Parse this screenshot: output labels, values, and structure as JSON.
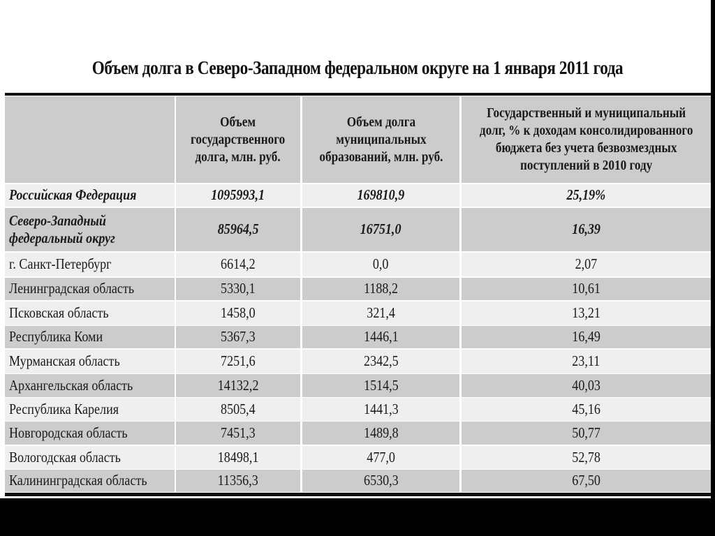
{
  "title": "Объем долга в Северо-Западном федеральном округе на 1 января 2011 года",
  "table": {
    "headers": [
      "",
      "Объем\nгосударственного\nдолга, млн. руб.",
      "Объем долга\nмуниципальных\nобразований, млн. руб.",
      "Государственный и муниципальный\nдолг, % к доходам консолидированного\nбюджета без учета безвозмездных\nпоступлений в 2010 году"
    ],
    "rows": [
      {
        "region": "Российская Федерация",
        "state_debt": "1095993,1",
        "municipal_debt": "169810,9",
        "debt_pct": "25,19%",
        "emphasis": true
      },
      {
        "region": "Северо-Западный\nфедеральный округ",
        "state_debt": "85964,5",
        "municipal_debt": "16751,0",
        "debt_pct": "16,39",
        "emphasis": true
      },
      {
        "region": "г. Санкт-Петербург",
        "state_debt": "6614,2",
        "municipal_debt": "0,0",
        "debt_pct": "2,07"
      },
      {
        "region": "Ленинградская область",
        "state_debt": "5330,1",
        "municipal_debt": "1188,2",
        "debt_pct": "10,61"
      },
      {
        "region": "Псковская область",
        "state_debt": "1458,0",
        "municipal_debt": "321,4",
        "debt_pct": "13,21"
      },
      {
        "region": "Республика Коми",
        "state_debt": "5367,3",
        "municipal_debt": "1446,1",
        "debt_pct": "16,49"
      },
      {
        "region": "Мурманская область",
        "state_debt": "7251,6",
        "municipal_debt": "2342,5",
        "debt_pct": "23,11"
      },
      {
        "region": "Архангельская область",
        "state_debt": "14132,2",
        "municipal_debt": "1514,5",
        "debt_pct": "40,03"
      },
      {
        "region": "Республика Карелия",
        "state_debt": "8505,4",
        "municipal_debt": "1441,3",
        "debt_pct": "45,16"
      },
      {
        "region": "Новгородская область",
        "state_debt": "7451,3",
        "municipal_debt": "1489,8",
        "debt_pct": "50,77"
      },
      {
        "region": "Вологодская область",
        "state_debt": "18498,1",
        "municipal_debt": "477,0",
        "debt_pct": "52,78"
      },
      {
        "region": "Калининградская область",
        "state_debt": "11356,3",
        "municipal_debt": "6530,3",
        "debt_pct": "67,50"
      }
    ]
  },
  "colors": {
    "header_bg": "#cccccc",
    "row_light": "#efefef",
    "row_grey": "#cccccc",
    "rule": "#111111"
  }
}
